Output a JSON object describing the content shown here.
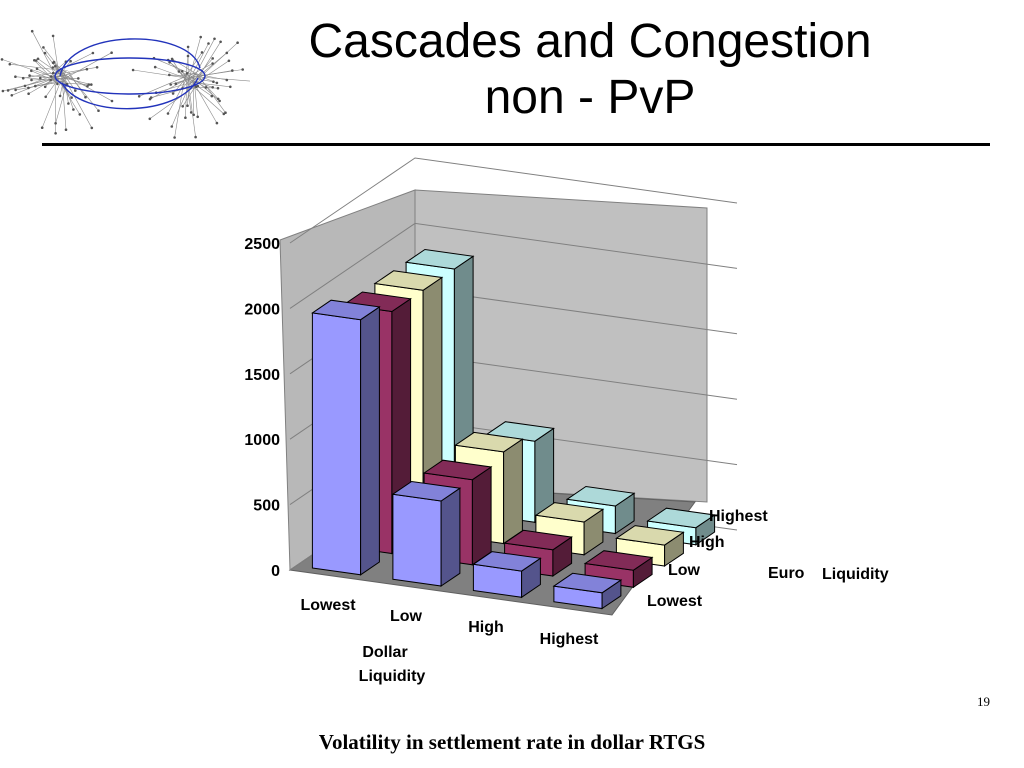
{
  "slide": {
    "title_line1": "Cascades and Congestion",
    "title_line2": "non - PvP",
    "slide_number": "19",
    "caption": "Volatility in settlement rate in dollar RTGS",
    "logo": "network-graph-logo"
  },
  "chart_data": {
    "type": "bar3d",
    "yticks": [
      "0",
      "500",
      "1000",
      "1500",
      "2000",
      "2500"
    ],
    "ylim": [
      0,
      2500
    ],
    "dollar_categories": [
      "Lowest",
      "Low",
      "High",
      "Highest"
    ],
    "euro_categories": [
      "Lowest",
      "Low",
      "High",
      "Highest"
    ],
    "xlabel_line1": "Dollar",
    "xlabel_line2": "Liquidity",
    "zlabel_word1": "Euro",
    "zlabel_word2": "Liquidity",
    "series": [
      {
        "name": "Lowest",
        "color": "#9999ff",
        "values": [
          1950,
          650,
          200,
          120
        ]
      },
      {
        "name": "Low",
        "color": "#993366",
        "values": [
          1850,
          650,
          200,
          130
        ]
      },
      {
        "name": "High",
        "color": "#ffffcc",
        "values": [
          1850,
          700,
          250,
          160
        ]
      },
      {
        "name": "Highest",
        "color": "#ccffff",
        "values": [
          1850,
          620,
          210,
          130
        ]
      }
    ]
  }
}
